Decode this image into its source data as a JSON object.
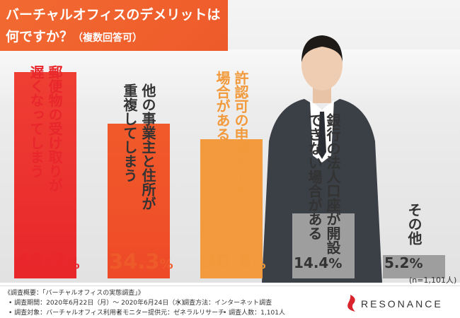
{
  "title": {
    "line1": "バーチャルオフィスのデメリットは",
    "line2": "何ですか？",
    "line2_sub": "（複数回答可）"
  },
  "chart_data": {
    "type": "bar",
    "categories": [
      "郵便物の受け取りが遅くなってしまう",
      "他の事業主と住所が重複してしまう",
      "許認可の申請ができない場合がある",
      "銀行の法人口座が開設できない場合がある",
      "その他"
    ],
    "values": [
      45.7,
      34.3,
      30.8,
      14.4,
      5.2
    ],
    "value_labels": [
      {
        "num": "45.7",
        "unit": "%"
      },
      {
        "num": "34.3",
        "unit": "%"
      },
      {
        "num": "30.8",
        "unit": "%"
      },
      {
        "num": "14.4",
        "unit": "%"
      },
      {
        "num": "5.2",
        "unit": "%"
      }
    ],
    "label_lines": [
      [
        "郵便物の受け取りが",
        "遅くなってしまう"
      ],
      [
        "他の事業主と住所が",
        "重複してしまう"
      ],
      [
        "許認可の申請ができない",
        "場合がある"
      ],
      [
        "銀行の法人口座が開設",
        "できない場合がある"
      ],
      [
        "その他"
      ]
    ],
    "colors": {
      "bar": [
        "#ee3b34",
        "#f15a2a",
        "#f39a3e",
        "#9e9e9e",
        "#9e9e9e"
      ],
      "value_text": [
        "#e8262b",
        "#ee5a2a",
        "#f29a3b",
        "#333333",
        "#333333"
      ],
      "label_text": [
        "#e8262b",
        "#333333",
        "#f29a3b",
        "#333333",
        "#333333"
      ]
    },
    "ylim": [
      0,
      50
    ]
  },
  "note_n": "(n=1,101人)",
  "footer": {
    "overview": "《調査概要：「バーチャルオフィスの実態調査」》",
    "period": "• 調査期間：2020年6月22日（月）～ 2020年6月24日（水）",
    "method": "• 調査方法：インターネット調査",
    "target": "• 調査対象：バーチャルオフィス利用者",
    "monitor": "• モニター提供元：ゼネラルリサーチ",
    "count": "• 調査人数：1,101人"
  },
  "logo": {
    "text": "RESONANCE"
  },
  "colors": {
    "accent": "#f26a32",
    "logo_red": "#d9232d"
  }
}
